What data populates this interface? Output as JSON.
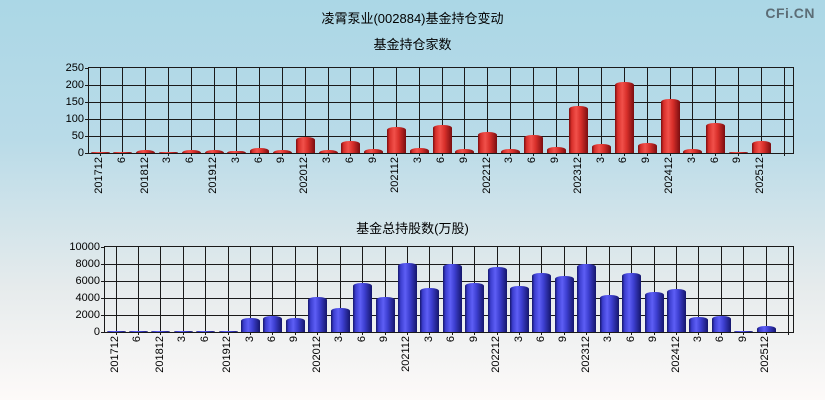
{
  "page": {
    "title": "凌霄泵业(002884)基金持仓变动",
    "logo": "CFi.CN"
  },
  "chart_data": [
    {
      "type": "bar",
      "title": "基金持仓家数",
      "categories": [
        "201712",
        "6",
        "201812",
        "3",
        "6",
        "201912",
        "3",
        "6",
        "9",
        "202012",
        "3",
        "6",
        "9",
        "202112",
        "3",
        "6",
        "9",
        "202212",
        "3",
        "6",
        "9",
        "202312",
        "3",
        "6",
        "9",
        "202412",
        "3",
        "6",
        "9",
        "202512"
      ],
      "values": [
        3,
        3,
        9,
        3,
        9,
        10,
        7,
        14,
        8,
        46,
        10,
        36,
        12,
        76,
        15,
        82,
        12,
        62,
        12,
        52,
        19,
        138,
        26,
        210,
        28,
        158,
        12,
        88,
        3,
        35
      ],
      "xlabel": "",
      "ylabel": "",
      "ylim": [
        0,
        250
      ],
      "yticks": [
        0,
        50,
        100,
        150,
        200,
        250
      ],
      "grid": true,
      "legend": false,
      "bar_color_center": "#f1504a",
      "bar_color_mid": "#d82f2a",
      "bar_color_edge": "#7a0d10"
    },
    {
      "type": "bar",
      "title": "基金总持股数(万股)",
      "categories": [
        "201712",
        "6",
        "201812",
        "3",
        "6",
        "201912",
        "3",
        "6",
        "9",
        "202012",
        "3",
        "6",
        "9",
        "202112",
        "3",
        "6",
        "9",
        "202212",
        "3",
        "6",
        "9",
        "202312",
        "3",
        "6",
        "9",
        "202412",
        "3",
        "6",
        "9",
        "202512"
      ],
      "values": [
        120,
        120,
        120,
        120,
        120,
        120,
        1700,
        1900,
        1700,
        4100,
        2800,
        5800,
        4100,
        8100,
        5200,
        8050,
        5800,
        7700,
        5450,
        6900,
        6600,
        8050,
        4350,
        6900,
        4700,
        5100,
        1800,
        1900,
        150,
        750
      ],
      "xlabel": "",
      "ylabel": "",
      "ylim": [
        0,
        10000
      ],
      "yticks": [
        0,
        2000,
        4000,
        6000,
        8000,
        10000
      ],
      "grid": true,
      "legend": false,
      "bar_color_center": "#5d5ef5",
      "bar_color_mid": "#3c3ecf",
      "bar_color_edge": "#15166b"
    }
  ]
}
